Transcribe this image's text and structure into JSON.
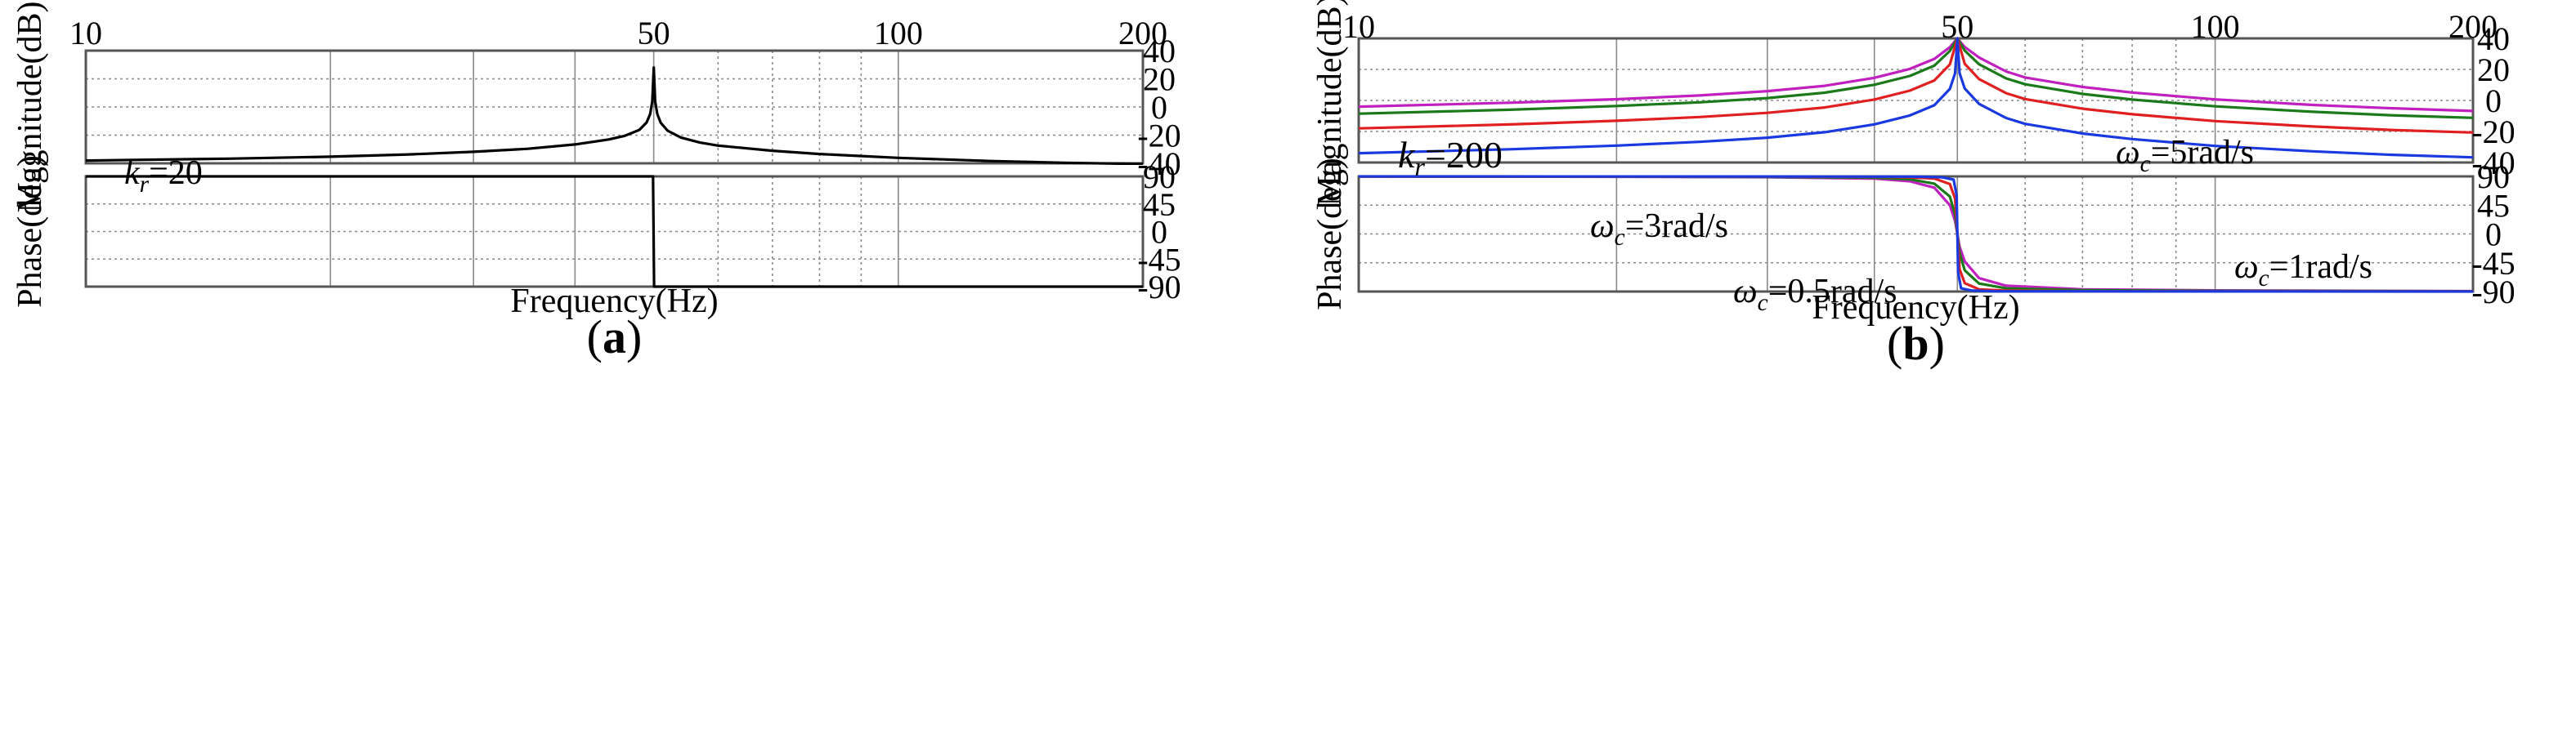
{
  "chart_data": [
    {
      "type": "line",
      "panel_label": "a",
      "x_scale": "log",
      "xlim": [
        10,
        200
      ],
      "x_ticks": [
        "10",
        "50",
        "100",
        "200"
      ],
      "xlabel": "Frequency(Hz)",
      "magnitude": {
        "ylabel": "Magnitude(dB)",
        "ylim": [
          -40,
          40
        ],
        "y_ticks": [
          "40",
          "20",
          "0",
          "-20",
          "-40"
        ],
        "annotation": {
          "symbol": "k",
          "subscript": "r",
          "text": "=20"
        },
        "series": [
          {
            "name": "",
            "color": "#000000",
            "x": [
              10,
              15,
              20,
              25,
              30,
              35,
              40,
              44,
              46,
              48,
              49,
              49.5,
              49.8,
              50,
              50.2,
              50.5,
              51,
              52,
              54,
              57,
              60,
              70,
              80,
              100,
              130,
              160,
              200
            ],
            "y": [
              -38,
              -36.7,
              -35.3,
              -33.7,
              -31.8,
              -29.7,
              -26.6,
              -23.1,
              -20.6,
              -16.3,
              -11,
              -5,
              4,
              28,
              4,
              -5,
              -11.2,
              -16.8,
              -21.7,
              -25.3,
              -27.4,
              -31.1,
              -33.4,
              -36.1,
              -38.4,
              -39.6,
              -40.5
            ]
          }
        ]
      },
      "phase": {
        "ylabel": "Phase(deg)",
        "ylim": [
          -90,
          90
        ],
        "y_ticks": [
          "90",
          "45",
          "0",
          "-45",
          "-90"
        ],
        "series": [
          {
            "name": "",
            "color": "#000000",
            "x": [
              10,
              49.9,
              50.05,
              200
            ],
            "y": [
              90,
              90,
              -90,
              -90
            ]
          }
        ]
      }
    },
    {
      "type": "line",
      "panel_label": "b",
      "x_scale": "log",
      "xlim": [
        10,
        200
      ],
      "x_ticks": [
        "10",
        "50",
        "100",
        "200"
      ],
      "xlabel": "Frequency(Hz)",
      "magnitude": {
        "ylabel": "Magnitude(dB)",
        "ylim": [
          -40,
          40
        ],
        "y_ticks": [
          "40",
          "20",
          "0",
          "-20",
          "-40"
        ],
        "annotation": {
          "symbol": "k",
          "subscript": "r",
          "text": "=200"
        },
        "series": [
          {
            "name": "ωc=5rad/s",
            "label_symbol": "ω",
            "label_subscript": "c",
            "label_text": "=5rad/s",
            "color": "#c020c0",
            "x": [
              10,
              15,
              20,
              25,
              30,
              35,
              40,
              44,
              47,
              49,
              50,
              51,
              53,
              57,
              60,
              70,
              80,
              100,
              130,
              160,
              200
            ],
            "y": [
              -4,
              -1.5,
              0.8,
              3.2,
              6,
              9.4,
              14.6,
              20.3,
              26.8,
              34.3,
              40,
              34.4,
              27.7,
              18.7,
              14.8,
              8.7,
              5.1,
              0.7,
              -2.9,
              -5,
              -6.8
            ]
          },
          {
            "name": "ωc=3rad/s",
            "label_symbol": "ω",
            "label_subscript": "c",
            "label_text": "=3rad/s",
            "color": "#1a7a1a",
            "x": [
              10,
              15,
              20,
              25,
              30,
              35,
              40,
              44,
              47,
              49,
              50,
              51,
              53,
              57,
              60,
              70,
              80,
              100,
              130,
              160,
              200
            ],
            "y": [
              -8.5,
              -6,
              -3.6,
              -1.2,
              1.5,
              5,
              10.1,
              15.8,
              22.4,
              31.9,
              40,
              32.1,
              23.3,
              14.2,
              10.4,
              4.2,
              0.6,
              -3.8,
              -7.3,
              -9.5,
              -11.2
            ]
          },
          {
            "name": "",
            "color": "#e02020",
            "x": [
              10,
              15,
              20,
              25,
              30,
              35,
              40,
              44,
              47,
              49,
              50,
              51,
              53,
              57,
              60,
              70,
              80,
              100,
              130,
              160,
              200
            ],
            "y": [
              -18,
              -15.5,
              -13.1,
              -10.7,
              -8,
              -4.5,
              0.6,
              6.3,
              12.9,
              23.2,
              40,
              23.6,
              13.8,
              4.7,
              0.9,
              -5.3,
              -8.9,
              -13.3,
              -16.8,
              -19,
              -20.7
            ]
          },
          {
            "name": "ωc=0.5rad/s",
            "label_symbol": "ω",
            "label_subscript": "c",
            "label_text": "=0.5rad/s",
            "color": "#1a3ae0",
            "x": [
              10,
              15,
              20,
              25,
              30,
              35,
              40,
              44,
              47,
              49,
              49.7,
              50,
              50.3,
              51,
              53,
              57,
              60,
              70,
              80,
              100,
              130,
              160,
              200
            ],
            "y": [
              -34,
              -31.5,
              -29.1,
              -26.7,
              -24,
              -20.5,
              -15.4,
              -9.7,
              -3.1,
              7.4,
              17.6,
              40,
              17.6,
              7.7,
              -2.2,
              -11.3,
              -15.1,
              -21.3,
              -24.9,
              -29.3,
              -32.8,
              -35,
              -36.7
            ]
          },
          {
            "name": "ωc=1rad/s",
            "label_symbol": "ω",
            "label_subscript": "c",
            "label_text": "=1rad/s",
            "color": "#e02020",
            "label_only": true
          }
        ]
      },
      "phase": {
        "ylabel": "Phase(deg)",
        "ylim": [
          -90,
          90
        ],
        "y_ticks": [
          "90",
          "45",
          "0",
          "-45",
          "-90"
        ],
        "series": [
          {
            "name": "",
            "color": "#c020c0",
            "x": [
              10,
              20,
              30,
              40,
              44,
              47,
              49,
              49.7,
              50,
              50.3,
              51,
              53,
              57,
              70,
              100,
              200
            ],
            "y": [
              89.7,
              89.3,
              88.7,
              86.5,
              82.4,
              72.4,
              45,
              20,
              0,
              -20,
              -43,
              -69,
              -81,
              -86.5,
              -88.2,
              -89.3
            ]
          },
          {
            "name": "",
            "color": "#1a7a1a",
            "x": [
              10,
              20,
              30,
              40,
              44,
              47,
              49,
              49.7,
              50,
              50.3,
              51,
              53,
              57,
              70,
              100,
              200
            ],
            "y": [
              89.8,
              89.6,
              89.2,
              87.9,
              85.4,
              78.7,
              58.5,
              30,
              0,
              -30,
              -57,
              -77.5,
              -85,
              -88,
              -89,
              -89.6
            ]
          },
          {
            "name": "",
            "color": "#e02020",
            "x": [
              10,
              20,
              30,
              40,
              44,
              47,
              49,
              49.7,
              50,
              50.3,
              51,
              53,
              57,
              70,
              100,
              200
            ],
            "y": [
              89.9,
              89.8,
              89.7,
              89.3,
              88.6,
              86.7,
              78,
              55,
              0,
              -55,
              -77,
              -86.5,
              -88.5,
              -89.5,
              -89.8,
              -89.9
            ]
          },
          {
            "name": "",
            "color": "#1a3ae0",
            "x": [
              10,
              30,
              45,
              48,
              49.5,
              49.9,
              50,
              50.1,
              50.5,
              52,
              55,
              100,
              200
            ],
            "y": [
              90,
              89.9,
              89.5,
              88.5,
              85,
              60,
              0,
              -60,
              -85,
              -88.5,
              -89.5,
              -89.9,
              -90
            ]
          }
        ]
      }
    }
  ]
}
